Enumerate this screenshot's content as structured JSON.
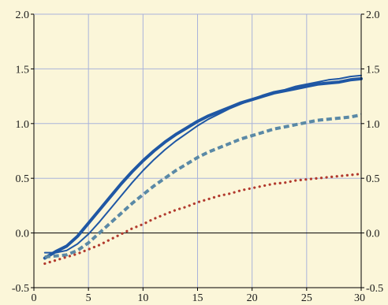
{
  "chart_data": {
    "type": "line",
    "title": "",
    "xlabel": "",
    "ylabel": "",
    "xlim": [
      0,
      30
    ],
    "ylim": [
      -0.5,
      2.0
    ],
    "x_ticks": [
      0,
      5,
      10,
      15,
      20,
      25,
      30
    ],
    "x_tick_labels": [
      "0",
      "5",
      "10",
      "15",
      "20",
      "25",
      "30"
    ],
    "y_ticks": [
      -0.5,
      0.0,
      0.5,
      1.0,
      1.5,
      2.0
    ],
    "y_tick_labels_left": [
      "-0.5",
      "0.0",
      "0.5",
      "1.0",
      "1.5",
      "2.0"
    ],
    "y_tick_labels_right": [
      "-0.5",
      "0.0",
      "0.5",
      "1.0",
      "1.5",
      "2.0"
    ],
    "grid": true,
    "zero_line": true,
    "series": [
      {
        "style": "thick-solid",
        "color": "#1F57A4",
        "x": [
          1,
          2,
          3,
          4,
          5,
          6,
          7,
          8,
          9,
          10,
          11,
          12,
          13,
          14,
          15,
          16,
          17,
          18,
          19,
          20,
          21,
          22,
          23,
          24,
          25,
          26,
          27,
          28,
          29,
          30
        ],
        "y": [
          -0.23,
          -0.17,
          -0.12,
          -0.03,
          0.09,
          0.21,
          0.33,
          0.45,
          0.56,
          0.66,
          0.75,
          0.83,
          0.9,
          0.96,
          1.02,
          1.07,
          1.11,
          1.15,
          1.19,
          1.22,
          1.25,
          1.28,
          1.3,
          1.32,
          1.34,
          1.36,
          1.37,
          1.38,
          1.4,
          1.41
        ]
      },
      {
        "style": "thin-solid",
        "color": "#1F57A4",
        "x": [
          1,
          2,
          3,
          4,
          5,
          6,
          7,
          8,
          9,
          10,
          11,
          12,
          13,
          14,
          15,
          16,
          17,
          18,
          19,
          20,
          21,
          22,
          23,
          24,
          25,
          26,
          27,
          28,
          29,
          30
        ],
        "y": [
          -0.18,
          -0.18,
          -0.16,
          -0.1,
          -0.01,
          0.1,
          0.22,
          0.34,
          0.46,
          0.57,
          0.67,
          0.76,
          0.84,
          0.91,
          0.98,
          1.04,
          1.09,
          1.14,
          1.18,
          1.22,
          1.26,
          1.29,
          1.31,
          1.34,
          1.36,
          1.38,
          1.4,
          1.41,
          1.43,
          1.44
        ]
      },
      {
        "style": "dashed",
        "color": "#5A89A6",
        "x": [
          1,
          2,
          3,
          4,
          5,
          6,
          7,
          8,
          9,
          10,
          11,
          12,
          13,
          14,
          15,
          16,
          17,
          18,
          19,
          20,
          21,
          22,
          23,
          24,
          25,
          26,
          27,
          28,
          29,
          30
        ],
        "y": [
          -0.22,
          -0.21,
          -0.2,
          -0.16,
          -0.09,
          0.0,
          0.09,
          0.18,
          0.27,
          0.35,
          0.43,
          0.5,
          0.57,
          0.63,
          0.69,
          0.74,
          0.78,
          0.82,
          0.86,
          0.89,
          0.92,
          0.95,
          0.97,
          0.99,
          1.01,
          1.03,
          1.04,
          1.05,
          1.06,
          1.08
        ]
      },
      {
        "style": "dotted",
        "color": "#B23A2E",
        "x": [
          1,
          2,
          3,
          4,
          5,
          6,
          7,
          8,
          9,
          10,
          11,
          12,
          13,
          14,
          15,
          16,
          17,
          18,
          19,
          20,
          21,
          22,
          23,
          24,
          25,
          26,
          27,
          28,
          29,
          30
        ],
        "y": [
          -0.28,
          -0.25,
          -0.22,
          -0.19,
          -0.15,
          -0.11,
          -0.06,
          -0.01,
          0.04,
          0.08,
          0.13,
          0.17,
          0.21,
          0.24,
          0.28,
          0.31,
          0.34,
          0.36,
          0.39,
          0.41,
          0.43,
          0.45,
          0.46,
          0.48,
          0.49,
          0.5,
          0.51,
          0.52,
          0.53,
          0.54
        ]
      }
    ]
  },
  "colors": {
    "background": "#FBF6D9",
    "grid": "#A9B3DA",
    "axis": "#000000"
  }
}
